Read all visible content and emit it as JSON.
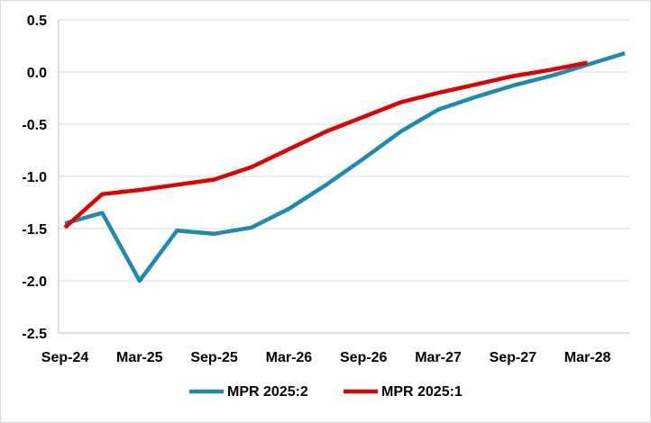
{
  "chart_data": {
    "type": "line",
    "title": "",
    "xlabel": "",
    "ylabel": "",
    "ylim": [
      -2.5,
      0.5
    ],
    "yticks": [
      0.5,
      0.0,
      -0.5,
      -1.0,
      -1.5,
      -2.0,
      -2.5
    ],
    "ytick_labels": [
      "0.5",
      "0.0",
      "-0.5",
      "-1.0",
      "-1.5",
      "-2.0",
      "-2.5"
    ],
    "x_labels": [
      "Sep-24",
      "Mar-25",
      "Sep-25",
      "Mar-26",
      "Sep-26",
      "Mar-27",
      "Sep-27",
      "Mar-28"
    ],
    "x_quarters": [
      "2024Q3",
      "2024Q4",
      "2025Q1",
      "2025Q2",
      "2025Q3",
      "2025Q4",
      "2026Q1",
      "2026Q2",
      "2026Q3",
      "2026Q4",
      "2027Q1",
      "2027Q2",
      "2027Q3",
      "2027Q4",
      "2028Q1",
      "2028Q2"
    ],
    "grid": "horizontal",
    "legend_position": "bottom",
    "series": [
      {
        "name": "MPR 2025:2",
        "color": "#1f8ab0",
        "values": [
          -1.45,
          -1.35,
          -2.0,
          -1.52,
          -1.55,
          -1.49,
          -1.31,
          -1.08,
          -0.83,
          -0.57,
          -0.36,
          -0.24,
          -0.13,
          -0.04,
          0.07,
          0.18
        ]
      },
      {
        "name": "MPR 2025:1",
        "color": "#e00000",
        "values": [
          -1.49,
          -1.17,
          -1.13,
          -1.08,
          -1.03,
          -0.91,
          -0.74,
          -0.57,
          -0.43,
          -0.29,
          -0.2,
          -0.12,
          -0.04,
          0.02,
          0.09,
          null
        ]
      }
    ]
  }
}
